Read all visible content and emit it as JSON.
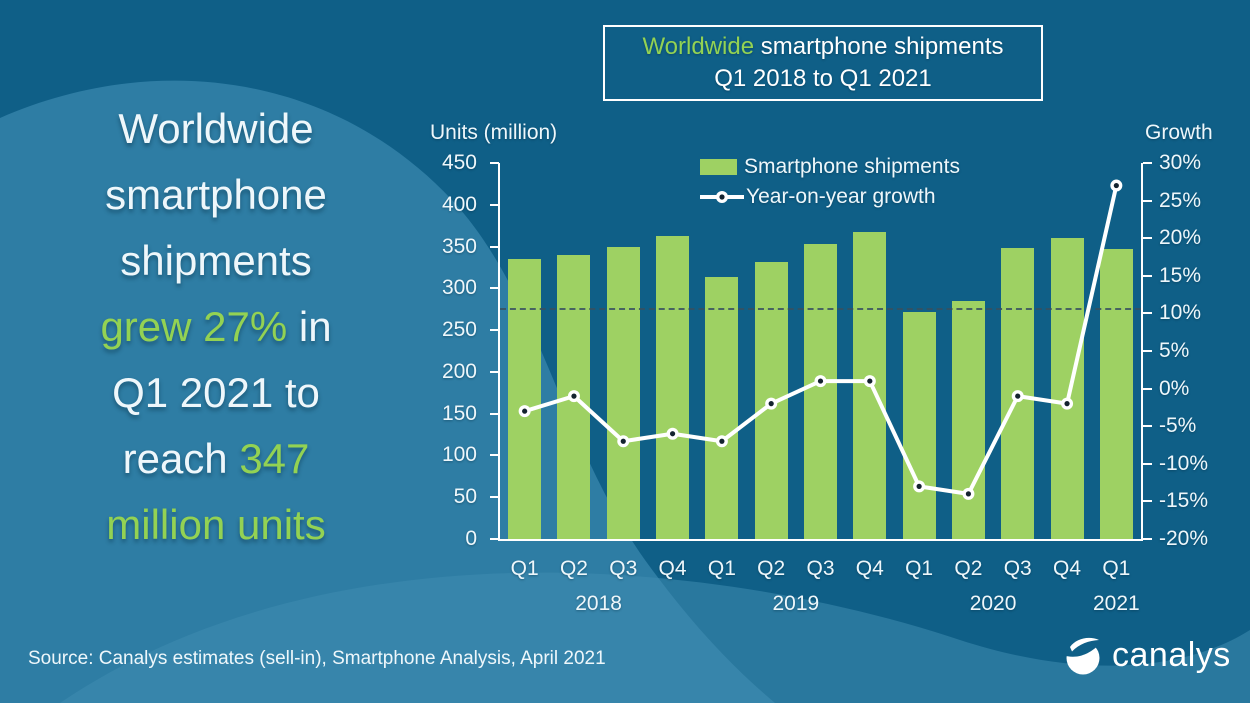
{
  "colors": {
    "background": "#0f5f87",
    "wave": "#2e7da4",
    "wave_light": "#3f8cb1",
    "green_text": "#93d253",
    "bar": "#9ed163",
    "line": "#ffffff",
    "marker_core": "#14232f",
    "reference_line": "#37505f"
  },
  "panel": {
    "headline_lines": [
      [
        {
          "t": "Worldwide",
          "c": "w"
        }
      ],
      [
        {
          "t": "smartphone",
          "c": "w"
        }
      ],
      [
        {
          "t": "shipments",
          "c": "w"
        }
      ],
      [
        {
          "t": "grew 27%",
          "c": "g"
        },
        {
          "t": " in",
          "c": "w"
        }
      ],
      [
        {
          "t": "Q1 2021 to",
          "c": "w"
        }
      ],
      [
        {
          "t": "reach ",
          "c": "w"
        },
        {
          "t": "347",
          "c": "g"
        }
      ],
      [
        {
          "t": "million units",
          "c": "g"
        }
      ]
    ]
  },
  "title_box": {
    "highlight": "Worldwide",
    "rest": " smartphone shipments",
    "line2": "Q1 2018 to Q1 2021"
  },
  "source_text": "Source: Canalys estimates (sell-in), Smartphone Analysis, April 2021",
  "logo": {
    "text": "canalys"
  },
  "chart_data": {
    "type": "bar+line",
    "title": "Worldwide smartphone shipments Q1 2018 to Q1 2021",
    "categories": [
      "Q1",
      "Q2",
      "Q3",
      "Q4",
      "Q1",
      "Q2",
      "Q3",
      "Q4",
      "Q1",
      "Q2",
      "Q3",
      "Q4",
      "Q1"
    ],
    "year_groups": [
      {
        "label": "2018",
        "span": 4
      },
      {
        "label": "2019",
        "span": 4
      },
      {
        "label": "2020",
        "span": 4
      },
      {
        "label": "2021",
        "span": 1
      }
    ],
    "series": [
      {
        "name": "Smartphone shipments",
        "type": "bar",
        "axis": "left",
        "units": "million",
        "values": [
          335,
          340,
          349,
          363,
          314,
          332,
          353,
          368,
          272,
          285,
          348,
          360,
          347
        ]
      },
      {
        "name": "Year-on-year growth",
        "type": "line",
        "axis": "right",
        "units": "%",
        "values": [
          -3,
          -1,
          -7,
          -6,
          -7,
          -2,
          1,
          1,
          -13,
          -14,
          -1,
          -2,
          27
        ]
      }
    ],
    "left_axis": {
      "label": "Units (million)",
      "min": 0,
      "max": 450,
      "step": 50,
      "ticks": [
        "450",
        "400",
        "350",
        "300",
        "250",
        "200",
        "150",
        "100",
        "50",
        "0"
      ]
    },
    "right_axis": {
      "label": "Growth",
      "min": -20,
      "max": 30,
      "step": 5,
      "ticks": [
        "30%",
        "25%",
        "20%",
        "15%",
        "10%",
        "5%",
        "0%",
        "-5%",
        "-10%",
        "-15%",
        "-20%"
      ]
    },
    "reference_line": {
      "axis": "left",
      "value": 277,
      "style": "dashed"
    },
    "legend_position": "inside-top-center",
    "grid": "off"
  }
}
